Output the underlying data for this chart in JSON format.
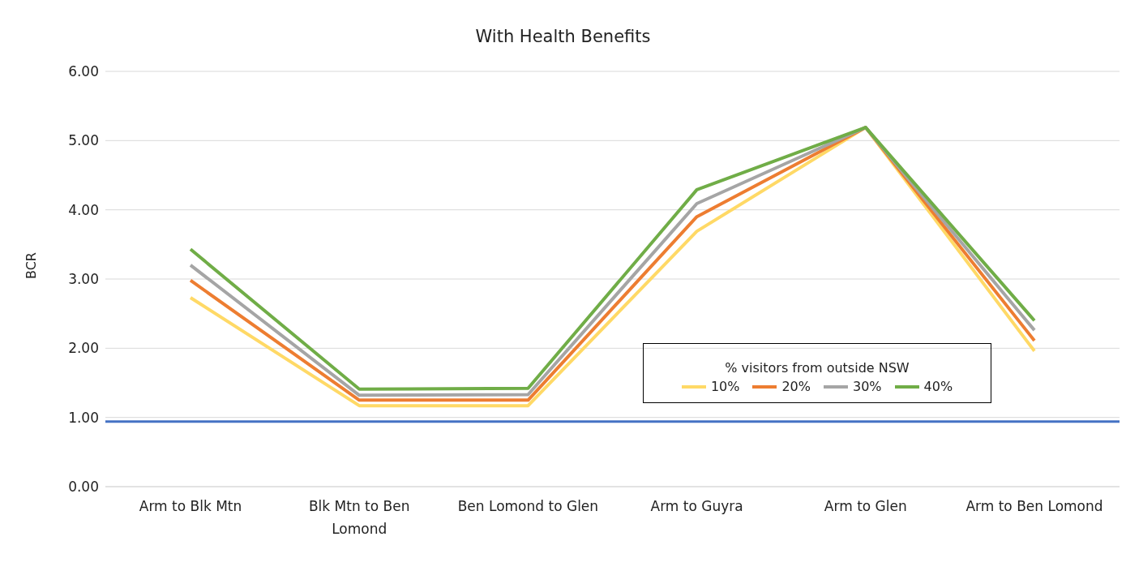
{
  "chart_data": {
    "type": "line",
    "title": "With Health Benefits",
    "ylabel": "BCR",
    "legend_title": "% visitors from outside NSW",
    "categories": [
      "Arm to Blk Mtn",
      "Blk Mtn to Ben Lomond",
      "Ben Lomond to Glen",
      "Arm to Guyra",
      "Arm to Glen",
      "Arm to Ben Lomond"
    ],
    "series": [
      {
        "name": "10%",
        "color": "#ffd966",
        "values": [
          2.73,
          1.17,
          1.17,
          3.69,
          5.19,
          1.96
        ]
      },
      {
        "name": "20%",
        "color": "#ed7d31",
        "values": [
          2.98,
          1.25,
          1.25,
          3.9,
          5.19,
          2.11
        ]
      },
      {
        "name": "30%",
        "color": "#a5a5a5",
        "values": [
          3.2,
          1.32,
          1.33,
          4.09,
          5.19,
          2.26
        ]
      },
      {
        "name": "40%",
        "color": "#70ad47",
        "values": [
          3.43,
          1.41,
          1.42,
          4.29,
          5.19,
          2.4
        ]
      }
    ],
    "ylim": [
      0,
      6
    ],
    "yticks": [
      {
        "value": 0,
        "label": "0.00"
      },
      {
        "value": 1,
        "label": "1.00"
      },
      {
        "value": 2,
        "label": "2.00"
      },
      {
        "value": 3,
        "label": "3.00"
      },
      {
        "value": 4,
        "label": "4.00"
      },
      {
        "value": 5,
        "label": "5.00"
      },
      {
        "value": 6,
        "label": "6.00"
      }
    ],
    "ref_lines": [
      {
        "axis": "y",
        "value": 0.94,
        "color": "#4472c4"
      }
    ],
    "grid": "y",
    "legend": "bottom right",
    "marker": "none",
    "line_style": "solid"
  }
}
